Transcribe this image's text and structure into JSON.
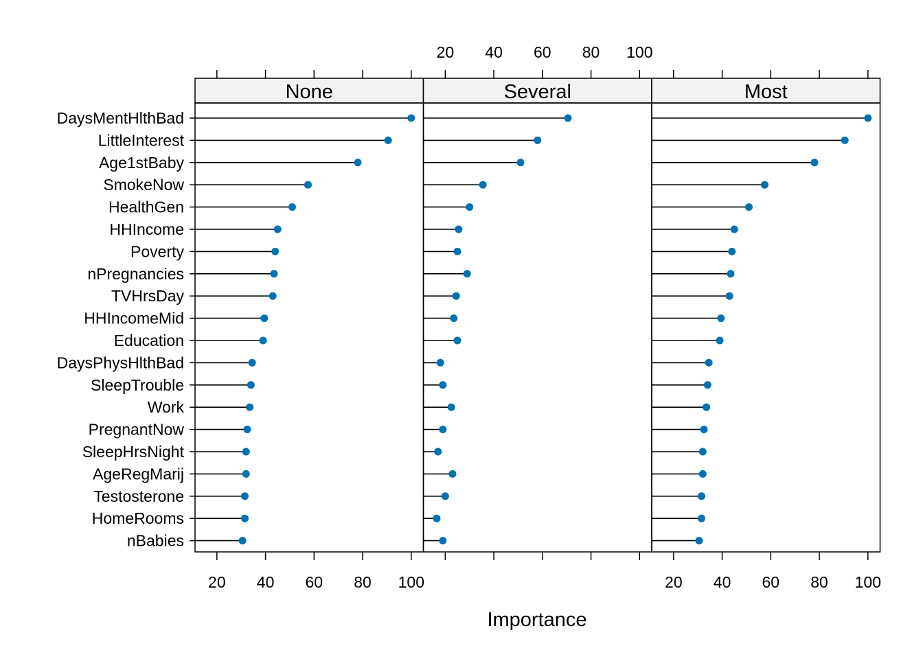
{
  "chart_data": {
    "type": "dot",
    "xlabel": "Importance",
    "features": [
      "DaysMentHlthBad",
      "LittleInterest",
      "Age1stBaby",
      "SmokeNow",
      "HealthGen",
      "HHIncome",
      "Poverty",
      "nPregnancies",
      "TVHrsDay",
      "HHIncomeMid",
      "Education",
      "DaysPhysHlthBad",
      "SleepTrouble",
      "Work",
      "PregnantNow",
      "SleepHrsNight",
      "AgeRegMarij",
      "Testosterone",
      "HomeRooms",
      "nBabies"
    ],
    "xticks": [
      20,
      40,
      60,
      80,
      100
    ],
    "xlim": [
      11,
      105
    ],
    "colors": {
      "point": "#0072b2",
      "line": "#000000",
      "strip": "#f2f2f2"
    },
    "panels": [
      {
        "name": "None",
        "values": [
          100,
          90.5,
          78,
          57.5,
          51,
          45,
          44,
          43.5,
          43,
          39.5,
          39,
          34.5,
          34,
          33.5,
          32.5,
          32,
          32,
          31.5,
          31.5,
          30.5
        ]
      },
      {
        "name": "Several",
        "values": [
          70.5,
          58,
          51,
          35.5,
          30,
          25.5,
          25,
          29,
          24.5,
          23.5,
          25,
          18,
          19,
          22.5,
          19,
          17,
          23,
          20,
          16.5,
          19
        ]
      },
      {
        "name": "Most",
        "values": [
          100,
          90.5,
          78,
          57.5,
          51,
          45,
          44,
          43.5,
          43,
          39.5,
          39,
          34.5,
          34,
          33.5,
          32.5,
          32,
          32,
          31.5,
          31.5,
          30.5
        ]
      }
    ]
  }
}
